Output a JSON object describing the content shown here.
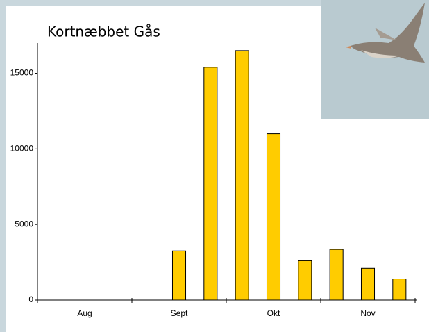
{
  "chart_data": {
    "type": "bar",
    "title": "Kortnæbbet Gås",
    "categories": [
      null,
      "Aug",
      null,
      null,
      "Sept",
      null,
      null,
      "Okt",
      null,
      null,
      "Nov",
      null
    ],
    "values": [
      0,
      0,
      0,
      0,
      3250,
      15400,
      16500,
      11000,
      2600,
      3350,
      2100,
      1400
    ],
    "color": "#ffcc00",
    "ylim": [
      0,
      17000
    ],
    "yticks": [
      0,
      5000,
      10000,
      15000
    ]
  }
}
